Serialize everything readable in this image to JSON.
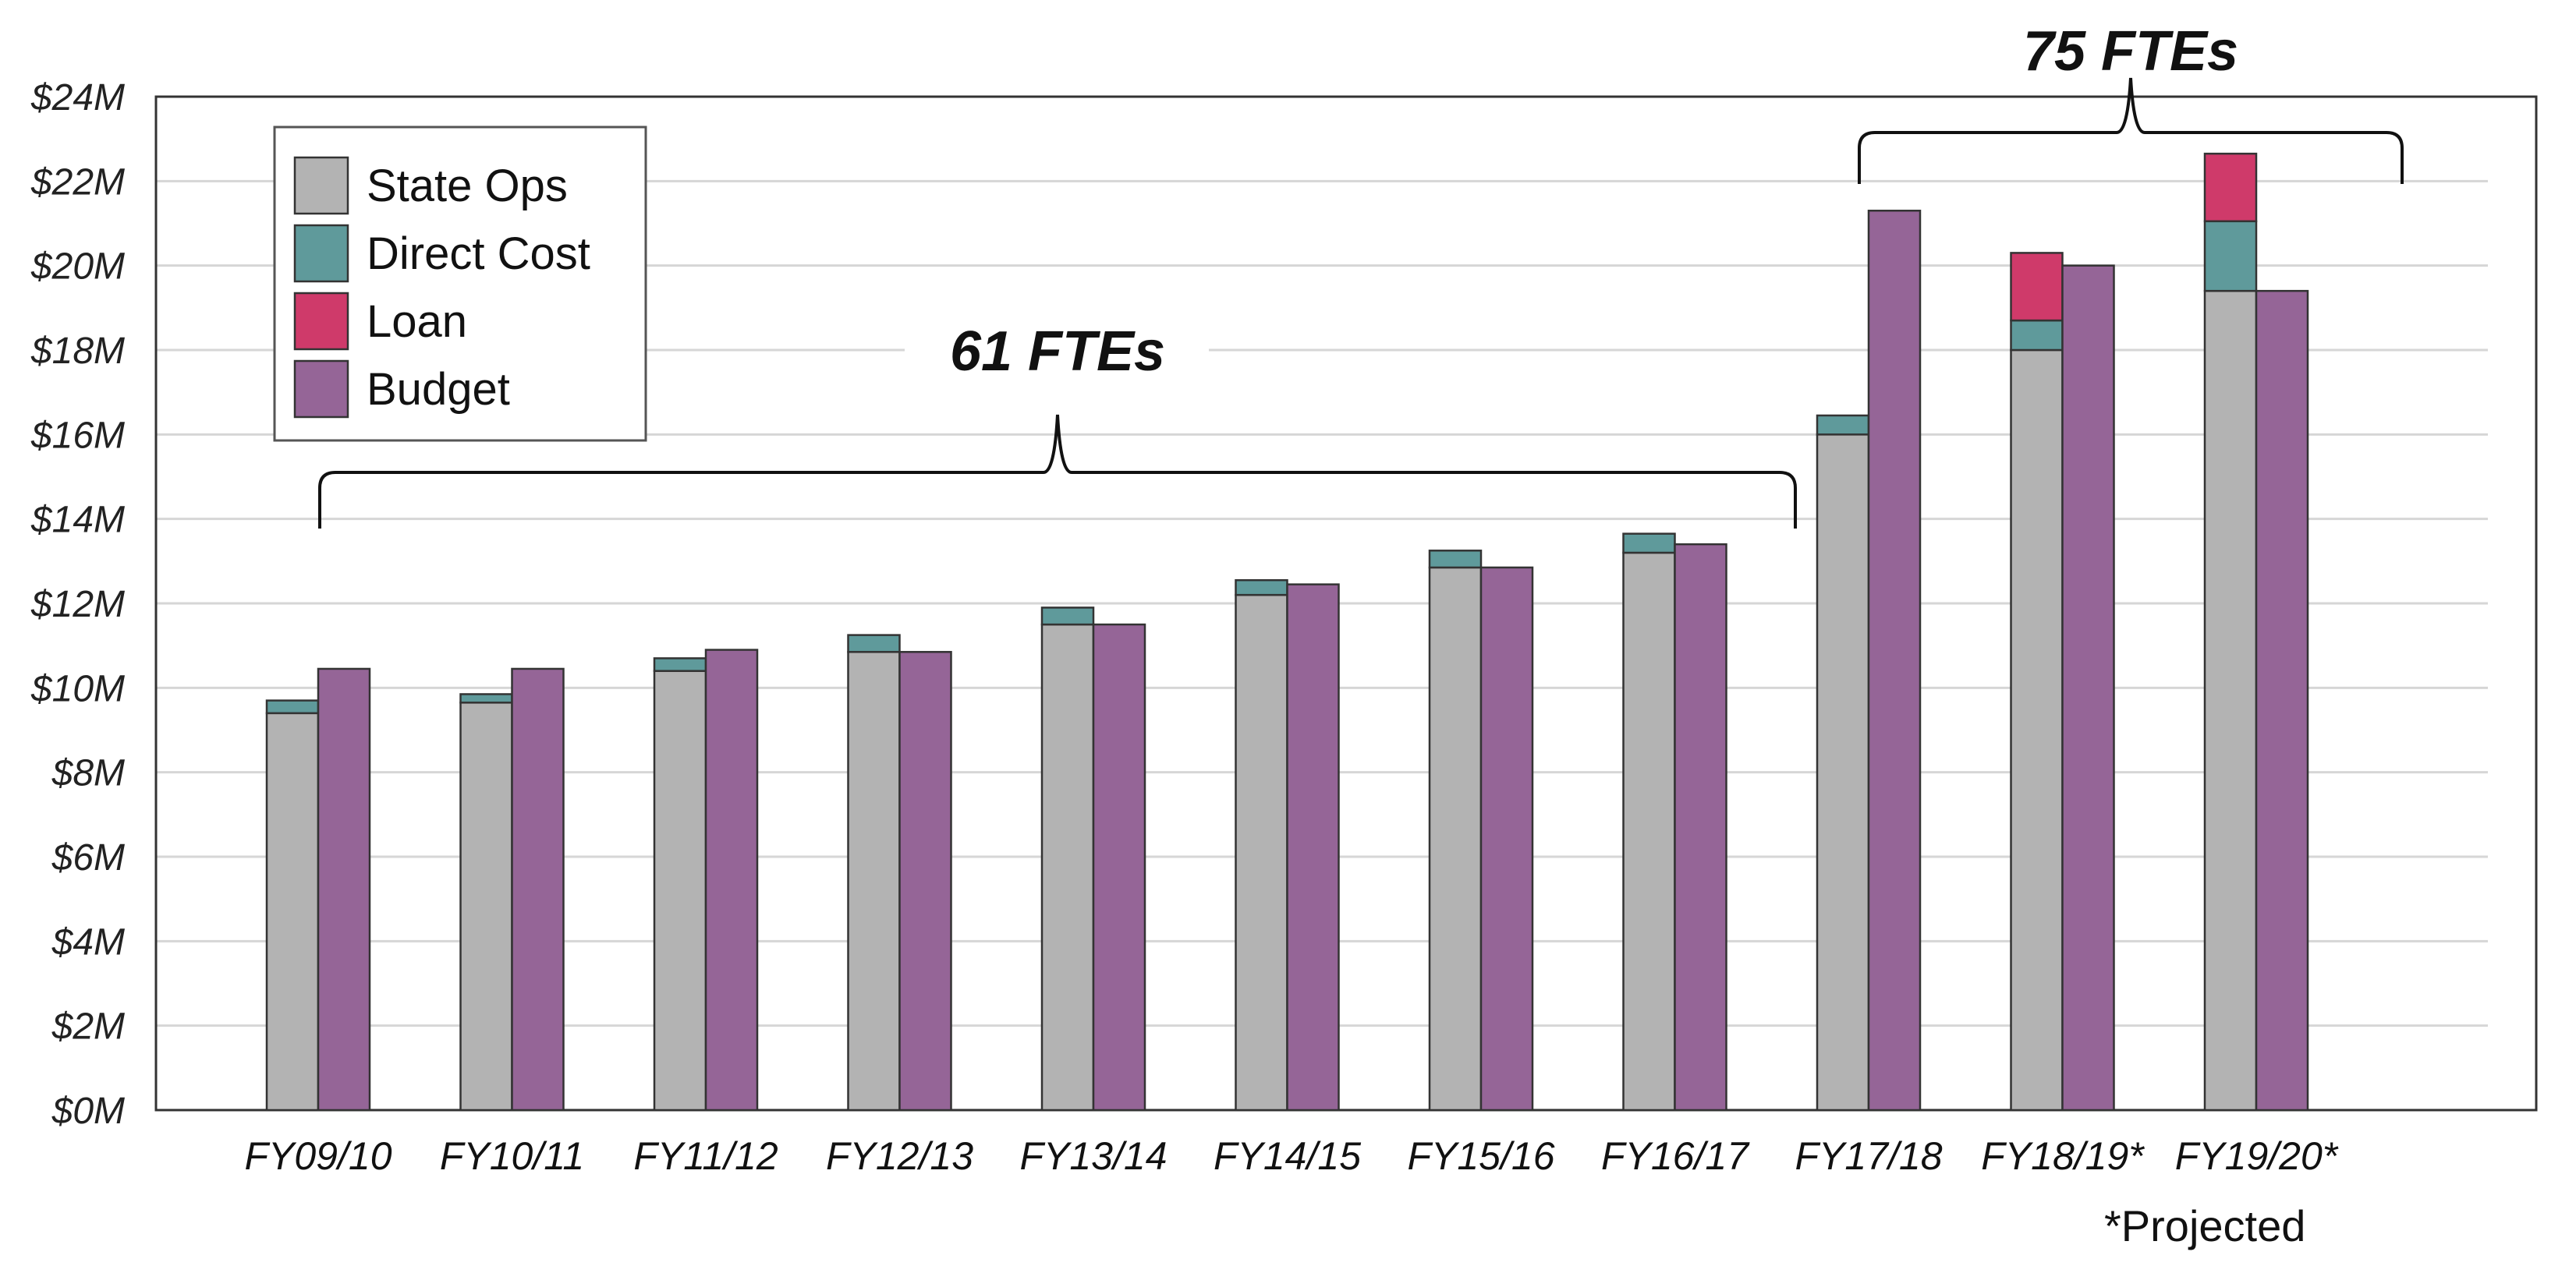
{
  "chart_data": {
    "type": "bar",
    "stacked_and_grouped": true,
    "categories": [
      "FY09/10",
      "FY10/11",
      "FY11/12",
      "FY12/13",
      "FY13/14",
      "FY14/15",
      "FY15/16",
      "FY16/17",
      "FY17/18",
      "FY18/19*",
      "FY19/20*"
    ],
    "stack_series": [
      {
        "name": "State Ops",
        "color": "#b3b3b3",
        "values": [
          9.4,
          9.65,
          10.4,
          10.85,
          11.5,
          12.2,
          12.85,
          13.2,
          16.0,
          18.0,
          19.4
        ]
      },
      {
        "name": "Direct Cost",
        "color": "#5f9a9b",
        "values": [
          0.3,
          0.2,
          0.3,
          0.4,
          0.4,
          0.35,
          0.4,
          0.45,
          0.45,
          0.7,
          1.65
        ]
      },
      {
        "name": "Loan",
        "color": "#cf3a6a",
        "values": [
          0,
          0,
          0,
          0,
          0,
          0,
          0,
          0,
          0,
          1.6,
          1.6
        ]
      }
    ],
    "side_series": {
      "name": "Budget",
      "color": "#956597",
      "values": [
        10.45,
        10.45,
        10.9,
        10.85,
        11.5,
        12.45,
        12.85,
        13.4,
        21.3,
        20.0,
        19.4
      ]
    },
    "y_ticks": [
      "$0M",
      "$2M",
      "$4M",
      "$6M",
      "$8M",
      "$10M",
      "$12M",
      "$14M",
      "$16M",
      "$18M",
      "$20M",
      "$22M",
      "$24M"
    ],
    "ylim": [
      0,
      24
    ],
    "grid": true,
    "legend_position": "top-left",
    "legend": [
      "State Ops",
      "Direct Cost",
      "Loan",
      "Budget"
    ],
    "annotations": {
      "bracket_1": {
        "label": "61 FTEs",
        "from_category": "FY09/10",
        "to_category": "FY16/17"
      },
      "bracket_2": {
        "label": "75 FTEs",
        "from_category": "FY17/18",
        "to_category": "FY19/20*"
      },
      "footnote": "*Projected"
    }
  }
}
